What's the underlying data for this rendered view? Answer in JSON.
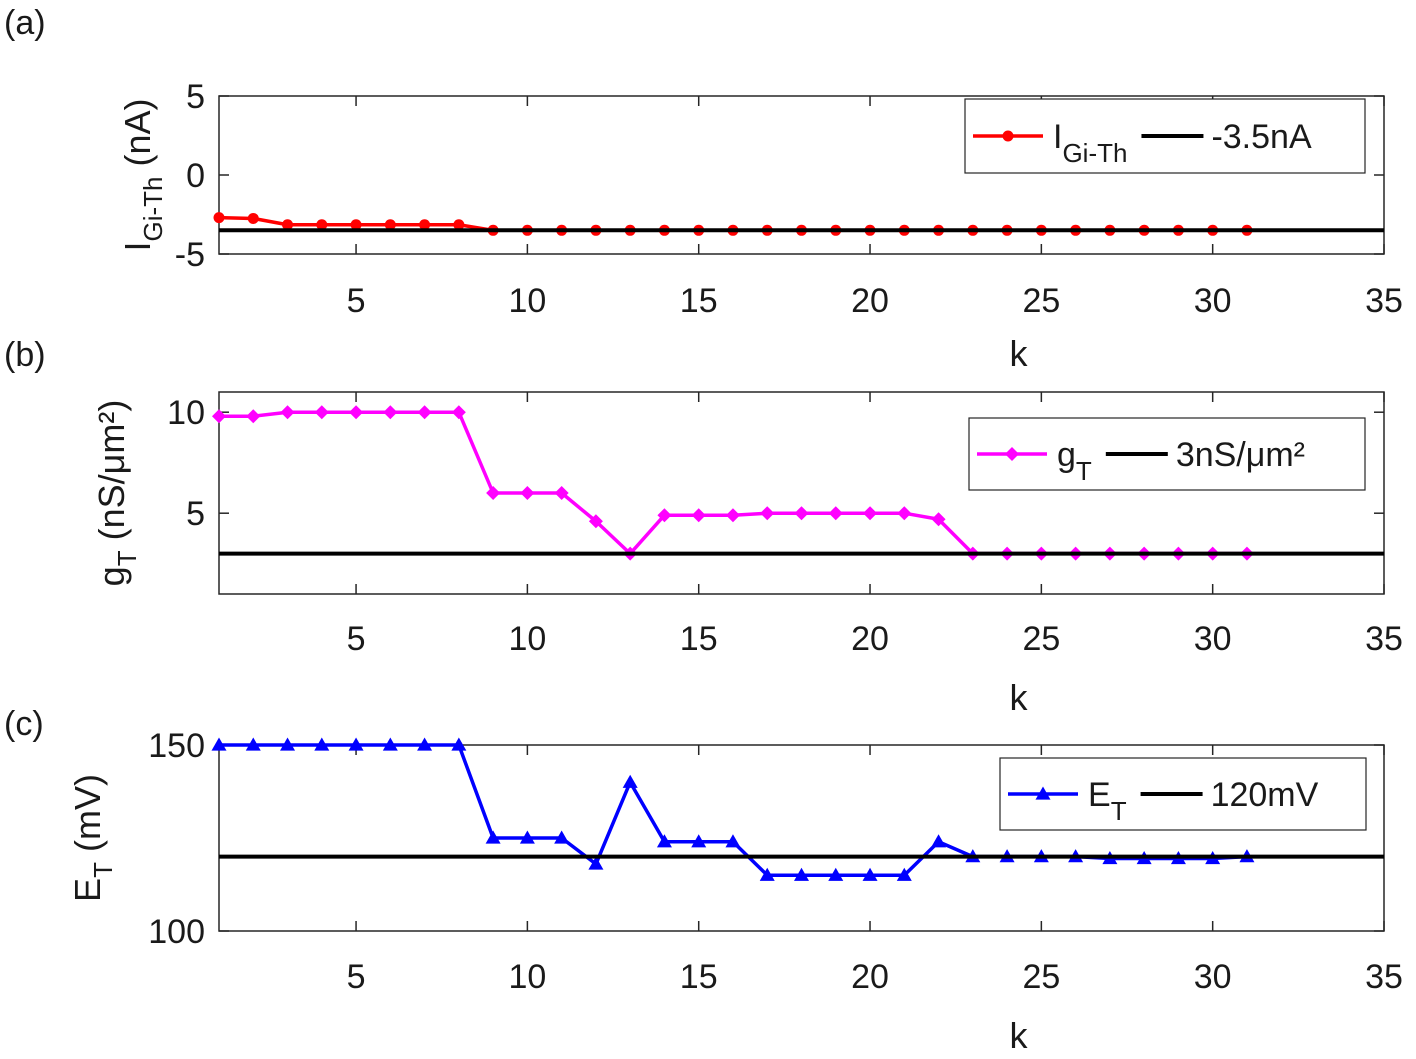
{
  "chart_data": [
    {
      "type": "line",
      "panel_label": "(a)",
      "xlabel": "k",
      "ylabel": {
        "main": "I",
        "sub": "Gi-Th",
        "unit": " (nA)"
      },
      "xlim": [
        1,
        35
      ],
      "ylim": [
        -5,
        5
      ],
      "xticks": [
        5,
        10,
        15,
        20,
        25,
        30,
        35
      ],
      "yticks": [
        -5,
        0,
        5
      ],
      "grid": false,
      "legend_position": "top-right",
      "series": [
        {
          "name": {
            "main": "I",
            "sub": "Gi-Th"
          },
          "color": "#ff0000",
          "marker": "circle",
          "x": [
            1,
            2,
            3,
            4,
            5,
            6,
            7,
            8,
            9,
            10,
            11,
            12,
            13,
            14,
            15,
            16,
            17,
            18,
            19,
            20,
            21,
            22,
            23,
            24,
            25,
            26,
            27,
            28,
            29,
            30,
            31
          ],
          "y": [
            -2.7,
            -2.75,
            -3.15,
            -3.15,
            -3.15,
            -3.15,
            -3.15,
            -3.15,
            -3.5,
            -3.5,
            -3.5,
            -3.5,
            -3.5,
            -3.5,
            -3.5,
            -3.5,
            -3.5,
            -3.5,
            -3.5,
            -3.5,
            -3.5,
            -3.5,
            -3.5,
            -3.5,
            -3.5,
            -3.5,
            -3.5,
            -3.5,
            -3.5,
            -3.5,
            -3.5
          ]
        },
        {
          "name": {
            "main": "-3.5nA",
            "sub": ""
          },
          "color": "#000000",
          "marker": "none",
          "reference_y": -3.5
        }
      ]
    },
    {
      "type": "line",
      "panel_label": "(b)",
      "xlabel": "k",
      "ylabel": {
        "main": "g",
        "sub": "T",
        "unit": " (nS/μm²)"
      },
      "xlim": [
        1,
        35
      ],
      "ylim": [
        1,
        11
      ],
      "xticks": [
        5,
        10,
        15,
        20,
        25,
        30,
        35
      ],
      "yticks": [
        5,
        10
      ],
      "grid": false,
      "legend_position": "top-right",
      "series": [
        {
          "name": {
            "main": "g",
            "sub": "T"
          },
          "color": "#ff00ff",
          "marker": "diamond",
          "x": [
            1,
            2,
            3,
            4,
            5,
            6,
            7,
            8,
            9,
            10,
            11,
            12,
            13,
            14,
            15,
            16,
            17,
            18,
            19,
            20,
            21,
            22,
            23,
            24,
            25,
            26,
            27,
            28,
            29,
            30,
            31
          ],
          "y": [
            9.8,
            9.8,
            10,
            10,
            10,
            10,
            10,
            10,
            6,
            6,
            6,
            4.6,
            3,
            4.9,
            4.9,
            4.9,
            5,
            5,
            5,
            5,
            5,
            4.7,
            3,
            3,
            3,
            3,
            3,
            3,
            3,
            3,
            3
          ]
        },
        {
          "name": {
            "main": "3nS/μm²",
            "sub": ""
          },
          "color": "#000000",
          "marker": "none",
          "reference_y": 3
        }
      ]
    },
    {
      "type": "line",
      "panel_label": "(c)",
      "xlabel": "k",
      "ylabel": {
        "main": "E",
        "sub": "T",
        "unit": " (mV)"
      },
      "xlim": [
        1,
        35
      ],
      "ylim": [
        100,
        150
      ],
      "xticks": [
        5,
        10,
        15,
        20,
        25,
        30,
        35
      ],
      "yticks": [
        100,
        150
      ],
      "grid": false,
      "legend_position": "top-right",
      "series": [
        {
          "name": {
            "main": "E",
            "sub": "T"
          },
          "color": "#0000ff",
          "marker": "triangle",
          "x": [
            1,
            2,
            3,
            4,
            5,
            6,
            7,
            8,
            9,
            10,
            11,
            12,
            13,
            14,
            15,
            16,
            17,
            18,
            19,
            20,
            21,
            22,
            23,
            24,
            25,
            26,
            27,
            28,
            29,
            30,
            31
          ],
          "y": [
            150,
            150,
            150,
            150,
            150,
            150,
            150,
            150,
            125,
            125,
            125,
            118,
            140,
            124,
            124,
            124,
            115,
            115,
            115,
            115,
            115,
            124,
            120,
            120,
            120,
            120,
            119.5,
            119.5,
            119.5,
            119.5,
            120
          ]
        },
        {
          "name": {
            "main": "120mV",
            "sub": ""
          },
          "color": "#000000",
          "marker": "none",
          "reference_y": 120
        }
      ]
    }
  ]
}
